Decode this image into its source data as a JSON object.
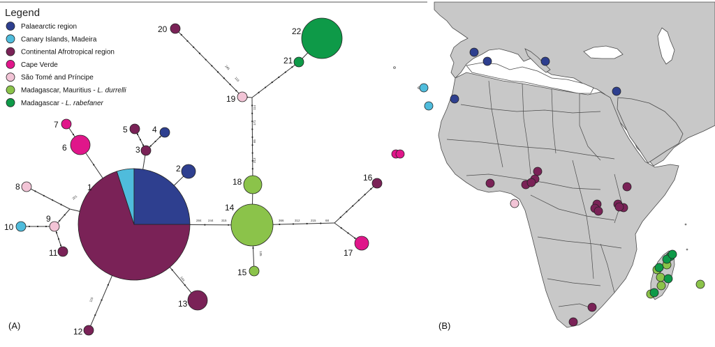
{
  "panel_labels": {
    "a": "(A)",
    "b": "(B)"
  },
  "legend": {
    "title": "Legend",
    "entries": [
      {
        "label": "Palaearctic region",
        "italic": "",
        "color": "#2e3f8f"
      },
      {
        "label": "Canary Islands, Madeira",
        "italic": "",
        "color": "#4fbcdc"
      },
      {
        "label": "Continental Afrotropical region",
        "italic": "",
        "color": "#7a2257"
      },
      {
        "label": "Cape Verde",
        "italic": "",
        "color": "#e0168a"
      },
      {
        "label": "São Tomé and Príncipe",
        "italic": "",
        "color": "#f2c4d6"
      },
      {
        "label": "Madagascar, Mauritius - ",
        "italic": "L. durrelli",
        "color": "#8bc34a"
      },
      {
        "label": "Madagascar - ",
        "italic": "L. rabefaner",
        "color": "#0e9a48"
      }
    ]
  },
  "network": {
    "nodes": [
      {
        "id": "1",
        "label": "1",
        "pie": [
          {
            "color": "#7a2257",
            "fraction": 0.7
          },
          {
            "color": "#4fbcdc",
            "fraction": 0.05
          },
          {
            "color": "#2e3f8f",
            "fraction": 0.25
          }
        ]
      },
      {
        "id": "2",
        "label": "2",
        "color": "#2e3f8f"
      },
      {
        "id": "3",
        "label": "3",
        "color": "#7a2257"
      },
      {
        "id": "4",
        "label": "4",
        "color": "#2e3f8f"
      },
      {
        "id": "5",
        "label": "5",
        "color": "#7a2257"
      },
      {
        "id": "6",
        "label": "6",
        "color": "#e0168a"
      },
      {
        "id": "7",
        "label": "7",
        "color": "#e0168a"
      },
      {
        "id": "8",
        "label": "8",
        "color": "#f2c4d6"
      },
      {
        "id": "9",
        "label": "9",
        "color": "#f2c4d6"
      },
      {
        "id": "10",
        "label": "10",
        "color": "#4fbcdc"
      },
      {
        "id": "11",
        "label": "11",
        "color": "#7a2257"
      },
      {
        "id": "12",
        "label": "12",
        "color": "#7a2257"
      },
      {
        "id": "13",
        "label": "13",
        "color": "#7a2257"
      },
      {
        "id": "14",
        "label": "14",
        "color": "#8bc34a"
      },
      {
        "id": "15",
        "label": "15",
        "color": "#8bc34a"
      },
      {
        "id": "16",
        "label": "16",
        "color": "#7a2257"
      },
      {
        "id": "17",
        "label": "17",
        "color": "#e0168a"
      },
      {
        "id": "18",
        "label": "18",
        "color": "#8bc34a"
      },
      {
        "id": "19",
        "label": "19",
        "color": "#f2c4d6"
      },
      {
        "id": "20",
        "label": "20",
        "color": "#7a2257"
      },
      {
        "id": "21",
        "label": "21",
        "color": "#0e9a48"
      },
      {
        "id": "22",
        "label": "22",
        "color": "#0e9a48"
      }
    ],
    "edge_labels": [
      "284",
      "244",
      "315",
      "366",
      "312",
      "215",
      "68",
      "313",
      "85",
      "171",
      "114",
      "116",
      "245",
      "135",
      "144",
      "115",
      "201"
    ]
  },
  "map": {
    "background": "#ffffff",
    "land_color": "#c8c8c8",
    "border_color": "#4a4a4a",
    "samples": [
      {
        "region": "Palaearctic region",
        "color": "#2e3f8f"
      },
      {
        "region": "Canary Islands, Madeira",
        "color": "#4fbcdc"
      },
      {
        "region": "Continental Afrotropical region",
        "color": "#7a2257"
      },
      {
        "region": "Cape Verde",
        "color": "#e0168a"
      },
      {
        "region": "São Tomé and Príncipe",
        "color": "#f2c4d6"
      },
      {
        "region": "Madagascar, Mauritius - L. durrelli",
        "color": "#8bc34a"
      },
      {
        "region": "Madagascar - L. rabefaner",
        "color": "#0e9a48"
      }
    ]
  }
}
